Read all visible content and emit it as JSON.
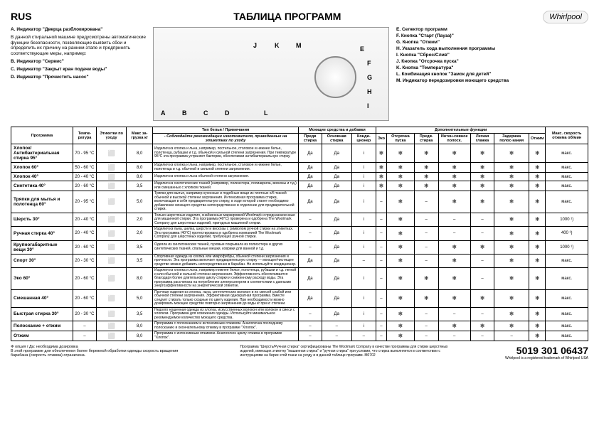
{
  "lang": "RUS",
  "title": "ТАБЛИЦА ПРОГРАММ",
  "logo": "Whirlpool",
  "leftLegend": [
    {
      "k": "A.",
      "t": "Индикатор \"Дверца разблокирована\""
    },
    {
      "k": "",
      "t": "В данной стиральной машине предусмотрены автоматические функции безопасности, позволяющие выявить сбои и определить их причину на раннем этапе и предпринять соответствующие меры, например:"
    },
    {
      "k": "B.",
      "t": "Индикатор \"Сервис\""
    },
    {
      "k": "C.",
      "t": "Индикатор \"Закрыт кран подачи воды\""
    },
    {
      "k": "D.",
      "t": "Индикатор \"Прочистить насос\""
    }
  ],
  "rightLegend": [
    {
      "k": "E.",
      "t": "Селектор программ"
    },
    {
      "k": "F.",
      "t": "Кнопка \"Старт (Пауза)\""
    },
    {
      "k": "G.",
      "t": "Кнопка \"Отжим\""
    },
    {
      "k": "H.",
      "t": "Указатель хода выполнения программы"
    },
    {
      "k": "I.",
      "t": "Кнопка \"Сброс/Слив\""
    },
    {
      "k": "J.",
      "t": "Кнопка \"Отсрочка пуска\""
    },
    {
      "k": "K.",
      "t": "Кнопка \"Температура\""
    },
    {
      "k": "L.",
      "t": "Комбинация кнопок \"Замок для детей\""
    },
    {
      "k": "M.",
      "t": "Индикатор передозировки моющего средства"
    }
  ],
  "machineLabels": [
    "A",
    "B",
    "C",
    "D",
    "E",
    "F",
    "G",
    "H",
    "I",
    "J",
    "K",
    "L",
    "M"
  ],
  "headers": {
    "prog": "Программа",
    "temp": "Темпе-ратура",
    "care": "Этикетки по уходу",
    "load": "Макс за-грузка кг",
    "desc": "Тип белья / Примечания",
    "descNote": "- Соблюдайте рекомендации изготовителя, приведенные на этикетках по уходу",
    "detGroup": "Моющие средства и добавки",
    "optGroup": "Дополнительные функции",
    "pre": "Предв стирка",
    "main": "Основная стирка",
    "soft": "Конди-ционер",
    "eco": "Эко",
    "delay": "Отсрочка пуска",
    "pre2": "Предв. стирка",
    "int": "Интен-сивное полоск.",
    "easy": "Легкая глажка",
    "rinse": "Задержка полос-кания",
    "spin": "Отжим",
    "max": "Макс. скорость отжима об/мин"
  },
  "rows": [
    {
      "n": "Хлопок/ Антибактериальная стирка 95°",
      "t": "70 - 95 °C",
      "l": "8,0",
      "d": "Изделия из хлопка и льна, например, постельное, столовое и нижнее белье, полотенца, рубашки и т.д. обычной и сильной степени загрязнения. При температуре 95°C эта программа устраняет бактерии, обеспечивая антибактериальную стирку.",
      "p": "Да",
      "m": "Да",
      "s": "i",
      "e": "s",
      "dl": "s",
      "p2": "s",
      "i2": "s",
      "ea": "s",
      "r": "s",
      "sp": "s",
      "mx": "макс."
    },
    {
      "n": "Хлопок 60°",
      "t": "50 - 60 °C",
      "l": "8,0",
      "d": "Изделия из хлопка и льна, например, постельное, столовое и нижнее белье, полотенца и т.д. обычной и сильной степени загрязнения.",
      "p": "Да",
      "m": "Да",
      "s": "i",
      "e": "s",
      "dl": "s",
      "p2": "s",
      "i2": "s",
      "ea": "s",
      "r": "s",
      "sp": "s",
      "mx": "макс."
    },
    {
      "n": "Хлопок 40°",
      "t": "20 - 40 °C",
      "l": "8,0",
      "d": "Изделия из хлопка и льна обычной степени загрязнения.",
      "p": "Да",
      "m": "Да",
      "s": "i",
      "e": "s",
      "dl": "s",
      "p2": "s",
      "i2": "s",
      "ea": "s",
      "r": "s",
      "sp": "s",
      "mx": "макс."
    },
    {
      "n": "Синтетика 40°",
      "t": "20 - 60 °C",
      "l": "3,5",
      "d": "Изделия из синтетических тканей (например, полиэстера, полиакрила, вискозы и т.д.) или смешанных с хлопком тканей.",
      "p": "Да",
      "m": "Да",
      "s": "i",
      "e": "s",
      "dl": "s",
      "p2": "s",
      "i2": "s",
      "ea": "s",
      "r": "s",
      "sp": "s",
      "mx": "макс."
    },
    {
      "n": "Тряпки для мытья и полотенца 60°",
      "t": "20 - 95 °C",
      "l": "5,0",
      "d": "Тряпки для мытья, например кухонные и подобные вещи из плотных х/б тканей обычной и высокой степени загрязнения. Интенсивная программа стирки, включающая в себя предварительную стирку, в ходе которой станет необходимо добавление моющего средства непосредственно в отделение для предварительной стирки.",
      "p": "Да",
      "m": "Да",
      "s": "i",
      "e": "-",
      "dl": "s",
      "p2": "-",
      "i2": "s",
      "ea": "s",
      "r": "s",
      "sp": "s",
      "mx": "макс."
    },
    {
      "n": "Шерсть 30°",
      "t": "20 - 40 °C",
      "l": "2,0",
      "d": "Только шерстяные изделия, снабженные маркировкой Woolmark и предназначенные для машинной стирки. Эта программа (40°C) проверена и одобрена The Woolmark Company для шерстяных изделий, пригодных машинной стирки.",
      "p": "-",
      "m": "Да",
      "s": "i",
      "e": "-",
      "dl": "s",
      "p2": "-",
      "i2": "-",
      "ea": "-",
      "r": "s",
      "sp": "s",
      "mx": "1000 ¹)"
    },
    {
      "n": "Ручная стирка 40°",
      "t": "20 - 40 °C",
      "l": "2,0",
      "d": "Изделия из льна, шелка, шерсти и вискозы с символом ручной стирки на этикетках. Эта программа (40°C) протестирована и одобрена компанией The Woolmark Company для шерстяных изделий, требующих ручной стирки.",
      "p": "-",
      "m": "Да",
      "s": "i",
      "e": "-",
      "dl": "s",
      "p2": "-",
      "i2": "-",
      "ea": "-",
      "r": "s",
      "sp": "s",
      "mx": "400 ¹)"
    },
    {
      "n": "Крупногабаритные вещи 30°",
      "t": "20 - 60 °C",
      "l": "3,5",
      "d": "Одеяла из синтетических тканей, пуховые покрывала из полиэстера и других синтетических тканей, спальные мешки, коврики для ванной и т.д.",
      "p": "-",
      "m": "Да",
      "s": "i",
      "e": "-",
      "dl": "s",
      "p2": "-",
      "i2": "s",
      "ea": "s",
      "r": "s",
      "sp": "s",
      "mx": "1000 ¹)"
    },
    {
      "n": "Спорт 30°",
      "t": "20 - 30 °C",
      "l": "3,5",
      "d": "Спортивная одежда из хлопка или микрофибры, обычной степени загрязнения и прочности. Эта программа включает предварительную стирку — моющее/чистящее средство можно добавить непосредственно в барабан. Не используйте кондиционер.",
      "p": "Да",
      "m": "Да",
      "s": "-",
      "e": "-",
      "dl": "s",
      "p2": "-",
      "i2": "s",
      "ea": "-",
      "r": "s",
      "sp": "s",
      "mx": "макс."
    },
    {
      "n": "Эко 60°",
      "t": "20 - 60 °C",
      "l": "8,0",
      "d": "Изделия из хлопка и льна, например нижнее белье, полотенца, рубашки и т.д. легкой и или обычной и сильной степени загрязнения. Эффективность обеспечивается благодаря более длительному циклу стирки и сниженному расходу воды. Эта программа рассчитана на потребление электроэнергии в соответствии с данными энергоэффективности на энергетической этикетке.",
      "p": "Да",
      "m": "Да",
      "s": "i",
      "e": "-",
      "dl": "s",
      "p2": "s",
      "i2": "s",
      "ea": "-",
      "r": "s",
      "sp": "s",
      "mx": "макс."
    },
    {
      "n": "Смешанная 40°",
      "t": "20 - 60 °C",
      "l": "5,0",
      "d": "Прочные изделия из хлопка, льна, синтетических волокон и их смесей слабой или обычной степени загрязнения. Эффективная однократная программа. Вместе следует стирать только сходные по цвету изделия. При необходимости можно дозировать моющее средство повторно загрязнения до воды кг при кг степени.",
      "p": "Да",
      "m": "Да",
      "s": "i",
      "e": "-",
      "dl": "s",
      "p2": "s",
      "i2": "s",
      "ea": "s",
      "r": "s",
      "sp": "s",
      "mx": "макс."
    },
    {
      "n": "Быстрая стирка 30°",
      "t": "20 - 30 °C",
      "l": "3,5",
      "d": "Недолго ношенная одежда из хлопка, искусственных волокон или волокон в смеси с хлопком. Программа для освежения одежды. Используйте минимальное рекомендуемое количество моющего средства.",
      "p": "-",
      "m": "Да",
      "s": "i",
      "e": "-",
      "dl": "s",
      "p2": "-",
      "i2": "-",
      "ea": "-",
      "r": "s",
      "sp": "s",
      "mx": "макс."
    },
    {
      "n": "Полоскание + отжим",
      "t": "-",
      "l": "8,0",
      "d": "Программа с полосканием и интенсивным отжимом. Аналогична последнему полосканию и окончательному отжиму в программе \"Хлопок\".",
      "p": "-",
      "m": "-",
      "s": "i",
      "e": "-",
      "dl": "s",
      "p2": "-",
      "i2": "s",
      "ea": "s",
      "r": "s",
      "sp": "s",
      "mx": "макс."
    },
    {
      "n": "Отжим",
      "t": "-",
      "l": "8,0",
      "d": "Программа с интенсивным отжимом. Аналогичен циклу отжима в программе \"Хлопок\".",
      "p": "-",
      "m": "-",
      "s": "-",
      "e": "-",
      "dl": "s",
      "p2": "-",
      "i2": "-",
      "ea": "-",
      "r": "-",
      "sp": "s",
      "mx": "макс."
    }
  ],
  "footer": {
    "left": "❄ опция / Да: необходима дозировка\nВ этой программе для обеспечения более бережной обработки одежды скорость вращения барабана (скорость отжима) ограничена.",
    "mid": "Программа \"Шерсть/Ручная стирка\" сертифицированы The Woolmark Company в качестве программы для стирки шерстяных изделий, имеющих этикетку \"машинная стирка\" и \"ручная стирка\" при условии, что стирка выполняется в соответствии с инструкциями на бирке этой ткани на уходу и в данной таблице программ. M0702",
    "partnum": "5019 301 06437",
    "trademark": "Whirlpool is a registered trademark of Whirlpool USA"
  }
}
